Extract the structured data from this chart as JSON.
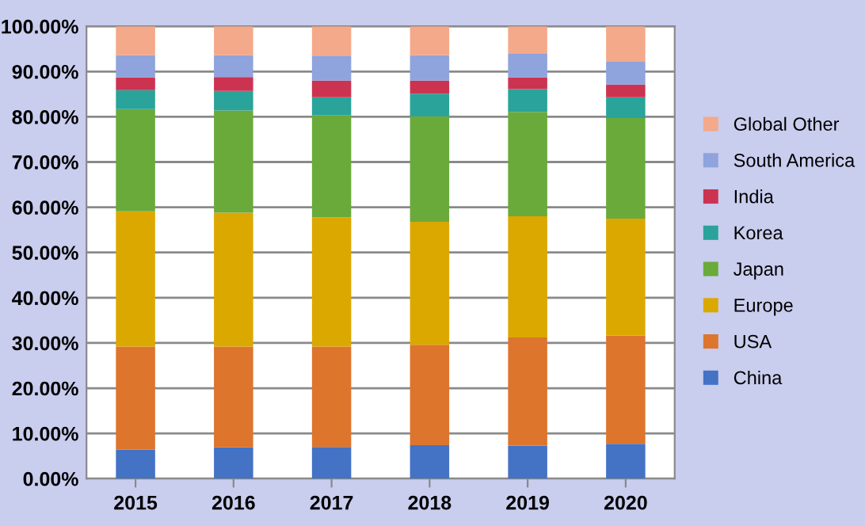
{
  "chart_data": {
    "type": "bar",
    "stacked": true,
    "categories": [
      "2015",
      "2016",
      "2017",
      "2018",
      "2019",
      "2020"
    ],
    "series": [
      {
        "name": "China",
        "color": "#4472c4",
        "values": [
          6.4,
          6.9,
          7.0,
          7.4,
          7.3,
          7.7
        ]
      },
      {
        "name": "USA",
        "color": "#dd752d",
        "values": [
          22.8,
          22.3,
          22.2,
          22.2,
          23.9,
          23.9
        ]
      },
      {
        "name": "Europe",
        "color": "#dba800",
        "values": [
          29.9,
          29.6,
          28.6,
          27.2,
          26.8,
          25.9
        ]
      },
      {
        "name": "Japan",
        "color": "#6aaa3a",
        "values": [
          22.6,
          22.6,
          22.5,
          23.3,
          23.1,
          22.2
        ]
      },
      {
        "name": "Korea",
        "color": "#2aa39a",
        "values": [
          4.2,
          4.3,
          4.0,
          5.0,
          5.0,
          4.6
        ]
      },
      {
        "name": "India",
        "color": "#cc3350",
        "values": [
          2.8,
          3.1,
          3.7,
          2.9,
          2.6,
          2.8
        ]
      },
      {
        "name": "South America",
        "color": "#8fa3dc",
        "values": [
          4.9,
          4.8,
          5.5,
          5.6,
          5.2,
          5.2
        ]
      },
      {
        "name": "Global Other",
        "color": "#f4a98a",
        "values": [
          6.4,
          6.4,
          6.5,
          6.4,
          6.1,
          7.7
        ]
      }
    ],
    "ylim": [
      0,
      100
    ],
    "yticks": [
      {
        "value": 0,
        "label": "0.00%"
      },
      {
        "value": 10,
        "label": "10.00%"
      },
      {
        "value": 20,
        "label": "20.00%"
      },
      {
        "value": 30,
        "label": "30.00%"
      },
      {
        "value": 40,
        "label": "40.00%"
      },
      {
        "value": 50,
        "label": "50.00%"
      },
      {
        "value": 60,
        "label": "60.00%"
      },
      {
        "value": 70,
        "label": "70.00%"
      },
      {
        "value": 80,
        "label": "80.00%"
      },
      {
        "value": 90,
        "label": "90.00%"
      },
      {
        "value": 100,
        "label": "100.00%"
      }
    ],
    "grid": "y",
    "legend": "right"
  }
}
